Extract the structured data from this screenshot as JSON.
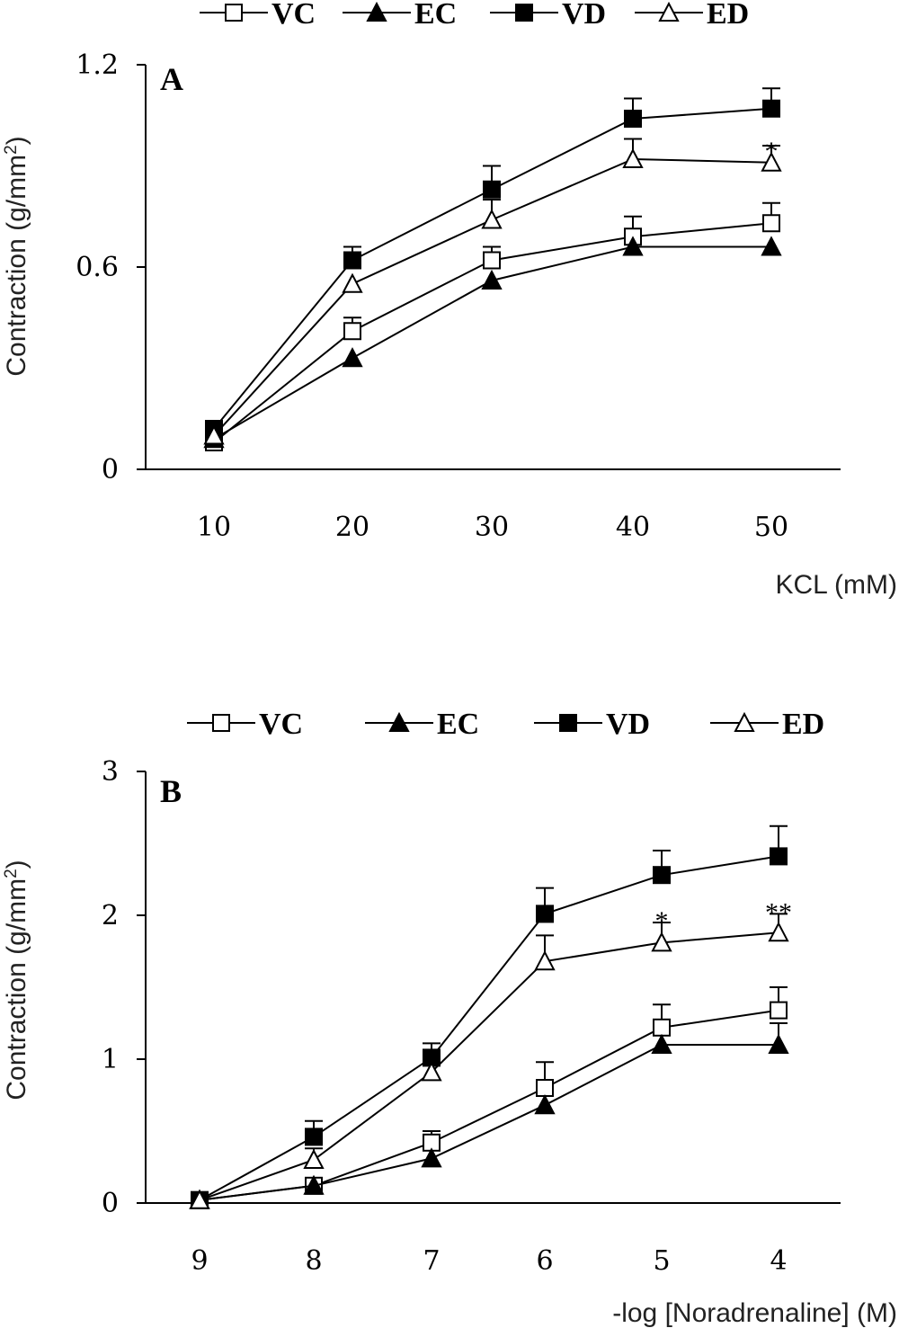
{
  "chart_data": [
    {
      "type": "line",
      "panel_label": "A",
      "xlabel": "KCL (mM)",
      "ylabel": "Contraction (g/mm²)",
      "ylabel_main": "Contraction (g/mm",
      "ylabel_sup": "2",
      "ylabel_end": ")",
      "x": [
        10,
        20,
        30,
        40,
        50
      ],
      "x_tick_labels": [
        "10",
        "20",
        "30",
        "40",
        "50"
      ],
      "ylim": [
        0,
        1.2
      ],
      "y_ticks": [
        0,
        0.6,
        1.2
      ],
      "y_tick_labels": [
        "0",
        "0.6",
        "1.2"
      ],
      "legend_position": "top",
      "grid": false,
      "series": [
        {
          "name": "VC",
          "marker": "open-square",
          "values": [
            0.08,
            0.41,
            0.62,
            0.69,
            0.73
          ],
          "errors": [
            0.02,
            0.04,
            0.04,
            0.06,
            0.06
          ]
        },
        {
          "name": "EC",
          "marker": "filled-triangle",
          "values": [
            0.09,
            0.33,
            0.56,
            0.66,
            0.66
          ],
          "errors": [
            0.02,
            0.03,
            0.03,
            0.02,
            0.02
          ]
        },
        {
          "name": "VD",
          "marker": "filled-square",
          "values": [
            0.12,
            0.62,
            0.83,
            1.04,
            1.07
          ],
          "errors": [
            0.02,
            0.04,
            0.07,
            0.06,
            0.06
          ]
        },
        {
          "name": "ED",
          "marker": "open-triangle",
          "values": [
            0.1,
            0.55,
            0.74,
            0.92,
            0.91
          ],
          "errors": [
            0.02,
            0.03,
            0.06,
            0.06,
            0.05
          ]
        }
      ],
      "annotations": [
        {
          "x": 50,
          "y": 0.96,
          "text": "*"
        }
      ]
    },
    {
      "type": "line",
      "panel_label": "B",
      "xlabel": "-log [Noradrenaline] (M)",
      "ylabel": "Contraction (g/mm²)",
      "ylabel_main": "Contraction (g/mm",
      "ylabel_sup": "2",
      "ylabel_end": ")",
      "x": [
        9,
        8,
        7,
        6,
        5,
        4
      ],
      "x_tick_labels": [
        "9",
        "8",
        "7",
        "6",
        "5",
        "4"
      ],
      "ylim": [
        0,
        3
      ],
      "y_ticks": [
        0,
        1,
        2,
        3
      ],
      "y_tick_labels": [
        "0",
        "1",
        "2",
        "3"
      ],
      "legend_position": "top",
      "grid": false,
      "series": [
        {
          "name": "VC",
          "marker": "open-square",
          "values": [
            0.02,
            0.12,
            0.42,
            0.8,
            1.22,
            1.34
          ],
          "errors": [
            0.02,
            0.04,
            0.08,
            0.18,
            0.16,
            0.16
          ]
        },
        {
          "name": "EC",
          "marker": "filled-triangle",
          "values": [
            0.02,
            0.12,
            0.31,
            0.68,
            1.1,
            1.1
          ],
          "errors": [
            0.02,
            0.02,
            0.04,
            0.05,
            0.05,
            0.15
          ]
        },
        {
          "name": "VD",
          "marker": "filled-square",
          "values": [
            0.02,
            0.46,
            1.01,
            2.01,
            2.28,
            2.41
          ],
          "errors": [
            0.02,
            0.11,
            0.1,
            0.18,
            0.17,
            0.21
          ]
        },
        {
          "name": "ED",
          "marker": "open-triangle",
          "values": [
            0.02,
            0.3,
            0.91,
            1.68,
            1.81,
            1.88
          ],
          "errors": [
            0.02,
            0.08,
            0.06,
            0.18,
            0.14,
            0.13
          ]
        }
      ],
      "annotations": [
        {
          "x": 5,
          "y": 2.0,
          "text": "*"
        },
        {
          "x": 4,
          "y": 2.06,
          "text": "**"
        }
      ]
    }
  ]
}
